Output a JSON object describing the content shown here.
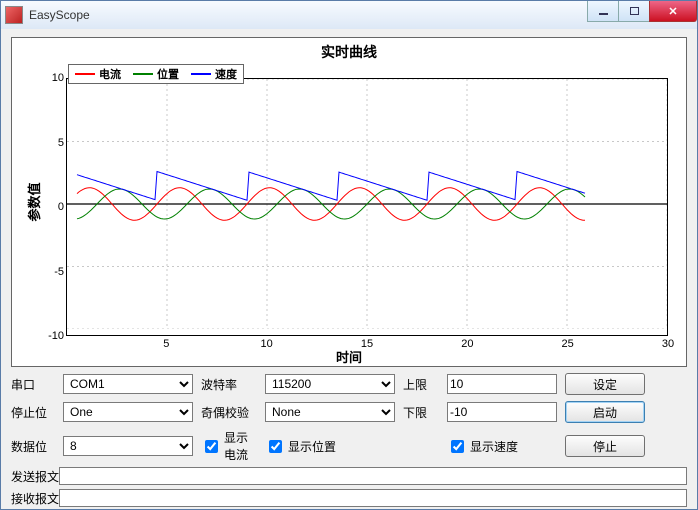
{
  "window": {
    "title": "EasyScope"
  },
  "chart": {
    "title": "实时曲线",
    "xlabel": "时间",
    "ylabel": "参数值",
    "xlim": [
      0,
      30
    ],
    "ylim": [
      -10,
      10
    ],
    "xticks": [
      5,
      10,
      15,
      20,
      25,
      30
    ],
    "yticks": [
      -10,
      -5,
      0,
      5,
      10
    ],
    "grid_color": "#c8c8c8",
    "axis_color": "#000000",
    "legend": [
      {
        "label": "电流",
        "color": "#ff0000"
      },
      {
        "label": "位置",
        "color": "#008000"
      },
      {
        "label": "速度",
        "color": "#0000ff"
      }
    ],
    "series": {
      "current": {
        "color": "#ff0000",
        "type": "sine",
        "amp": 1.3,
        "period": 4.5,
        "phase": 0,
        "offset": 0,
        "xstart": 0.5,
        "xend": 26
      },
      "position": {
        "color": "#008000",
        "type": "sine",
        "amp": 1.2,
        "period": 4.5,
        "phase": 1.5,
        "offset": 0,
        "xstart": 0.5,
        "xend": 26
      },
      "speed": {
        "color": "#0000ff",
        "type": "sawtooth",
        "ymin": 0.3,
        "ymax": 2.6,
        "period": 4.5,
        "phase": 0,
        "xstart": 0.5,
        "xend": 26
      }
    }
  },
  "labels": {
    "port": "串口",
    "baud": "波特率",
    "stop": "停止位",
    "parity": "奇偶校验",
    "databits": "数据位",
    "upper": "上限",
    "lower": "下限",
    "show_current": "显示电流",
    "show_position": "显示位置",
    "show_speed": "显示速度",
    "set": "设定",
    "start": "启动",
    "stop_btn": "停止",
    "send": "发送报文",
    "recv": "接收报文"
  },
  "values": {
    "port": "COM1",
    "baud": "115200",
    "stop": "One",
    "parity": "None",
    "databits": "8",
    "upper": "10",
    "lower": "-10",
    "show_current": true,
    "show_position": true,
    "show_speed": true,
    "send": "",
    "recv": ""
  }
}
